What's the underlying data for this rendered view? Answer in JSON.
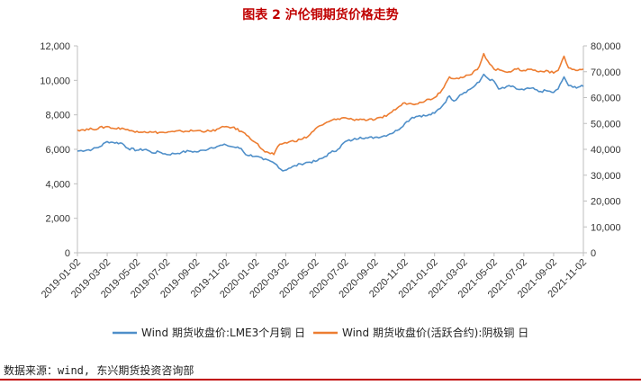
{
  "page": {
    "title": "图表 2 沪伦铜期货价格走势",
    "source": "数据来源：wind, 东兴期货投资咨询部"
  },
  "chart_data": {
    "type": "line",
    "title": "图表 2 沪伦铜期货价格走势",
    "x": [
      "2019-01-02",
      "2019-03-02",
      "2019-05-02",
      "2019-07-02",
      "2019-09-02",
      "2019-11-02",
      "2020-01-02",
      "2020-03-02",
      "2020-05-02",
      "2020-07-02",
      "2020-09-02",
      "2020-11-02",
      "2021-01-02",
      "2021-03-02",
      "2021-05-02",
      "2021-07-02",
      "2021-09-02",
      "2021-11-02"
    ],
    "xlabel": "",
    "ylim_left": [
      0,
      12000
    ],
    "yticks_left": [
      "0",
      "2,000",
      "4,000",
      "6,000",
      "8,000",
      "10,000",
      "12,000"
    ],
    "ylim_right": [
      0,
      80000
    ],
    "yticks_right": [
      "0",
      "10,000",
      "20,000",
      "30,000",
      "40,000",
      "50,000",
      "60,000",
      "70,000",
      "80,000"
    ],
    "colors": {
      "lme": "#4f8fc9",
      "shfe": "#ed7d31",
      "axis": "#bfbfbf",
      "title": "#c00000"
    },
    "series": [
      {
        "name": "Wind 期货收盘价:LME3个月铜 日",
        "axis": "left",
        "values": [
          [
            0,
            5900
          ],
          [
            1,
            6000
          ],
          [
            1.5,
            6150
          ],
          [
            2,
            6450
          ],
          [
            2.4,
            6400
          ],
          [
            3,
            6350
          ],
          [
            3.4,
            6050
          ],
          [
            4,
            5950
          ],
          [
            4.6,
            6000
          ],
          [
            5,
            5800
          ],
          [
            5.5,
            5850
          ],
          [
            6,
            5700
          ],
          [
            6.5,
            5750
          ],
          [
            7,
            5820
          ],
          [
            7.5,
            5900
          ],
          [
            8,
            5850
          ],
          [
            8.5,
            5950
          ],
          [
            9,
            6100
          ],
          [
            9.5,
            6200
          ],
          [
            10,
            6250
          ],
          [
            10.4,
            6150
          ],
          [
            11,
            6050
          ],
          [
            11.3,
            5700
          ],
          [
            12,
            5600
          ],
          [
            12.5,
            5400
          ],
          [
            13,
            5300
          ],
          [
            13.4,
            5100
          ],
          [
            13.8,
            4750
          ],
          [
            14.2,
            4900
          ],
          [
            15,
            5150
          ],
          [
            15.5,
            5250
          ],
          [
            16,
            5300
          ],
          [
            16.5,
            5500
          ],
          [
            17,
            5800
          ],
          [
            17.5,
            6000
          ],
          [
            18,
            6450
          ],
          [
            18.5,
            6550
          ],
          [
            19,
            6700
          ],
          [
            19.5,
            6650
          ],
          [
            20,
            6700
          ],
          [
            20.5,
            6750
          ],
          [
            21,
            6900
          ],
          [
            21.5,
            7100
          ],
          [
            22,
            7500
          ],
          [
            22.5,
            7850
          ],
          [
            23,
            7950
          ],
          [
            23.5,
            7950
          ],
          [
            24,
            8100
          ],
          [
            24.5,
            8500
          ],
          [
            25,
            9100
          ],
          [
            25.3,
            8800
          ],
          [
            25.7,
            9150
          ],
          [
            26,
            9300
          ],
          [
            26.5,
            9550
          ],
          [
            27,
            9900
          ],
          [
            27.3,
            10350
          ],
          [
            27.6,
            10100
          ],
          [
            28,
            9950
          ],
          [
            28.3,
            9500
          ],
          [
            28.7,
            9550
          ],
          [
            29,
            9700
          ],
          [
            29.5,
            9500
          ],
          [
            30,
            9450
          ],
          [
            30.5,
            9550
          ],
          [
            31,
            9350
          ],
          [
            31.5,
            9400
          ],
          [
            32,
            9300
          ],
          [
            32.3,
            9500
          ],
          [
            32.7,
            10200
          ],
          [
            33,
            9700
          ],
          [
            33.3,
            9600
          ],
          [
            34,
            9650
          ]
        ]
      },
      {
        "name": "Wind 期货收盘价(活跃合约):阴极铜 日",
        "axis": "right",
        "values": [
          [
            0,
            47500
          ],
          [
            1,
            47800
          ],
          [
            2,
            48800
          ],
          [
            2.5,
            48000
          ],
          [
            3,
            48200
          ],
          [
            3.5,
            47200
          ],
          [
            4,
            47000
          ],
          [
            4.5,
            46800
          ],
          [
            5,
            46600
          ],
          [
            6,
            46500
          ],
          [
            6.5,
            46800
          ],
          [
            7,
            47000
          ],
          [
            8,
            47200
          ],
          [
            9,
            47000
          ],
          [
            9.5,
            48000
          ],
          [
            10,
            48800
          ],
          [
            10.4,
            48500
          ],
          [
            11,
            47000
          ],
          [
            11.5,
            45000
          ],
          [
            12,
            42500
          ],
          [
            12.6,
            39000
          ],
          [
            13.2,
            38000
          ],
          [
            13.6,
            42000
          ],
          [
            14.2,
            42800
          ],
          [
            15,
            43800
          ],
          [
            15.5,
            45000
          ],
          [
            16,
            48000
          ],
          [
            16.5,
            49500
          ],
          [
            17,
            51000
          ],
          [
            17.5,
            51800
          ],
          [
            18,
            52200
          ],
          [
            18.5,
            51500
          ],
          [
            19,
            51700
          ],
          [
            19.5,
            51300
          ],
          [
            20,
            51500
          ],
          [
            20.5,
            52200
          ],
          [
            21,
            54000
          ],
          [
            21.5,
            56000
          ],
          [
            22,
            58000
          ],
          [
            22.5,
            57500
          ],
          [
            23,
            58200
          ],
          [
            24,
            60000
          ],
          [
            24.5,
            63000
          ],
          [
            25,
            68000
          ],
          [
            25.5,
            67500
          ],
          [
            26,
            68000
          ],
          [
            26.5,
            69000
          ],
          [
            27,
            72000
          ],
          [
            27.3,
            77000
          ],
          [
            27.7,
            73000
          ],
          [
            28,
            71000
          ],
          [
            28.5,
            70500
          ],
          [
            29,
            70000
          ],
          [
            29.5,
            71000
          ],
          [
            30,
            70500
          ],
          [
            30.5,
            71000
          ],
          [
            31,
            70000
          ],
          [
            31.5,
            70500
          ],
          [
            32,
            69500
          ],
          [
            32.3,
            70500
          ],
          [
            32.7,
            76000
          ],
          [
            33,
            71500
          ],
          [
            33.5,
            70500
          ],
          [
            34,
            71000
          ]
        ]
      }
    ]
  }
}
